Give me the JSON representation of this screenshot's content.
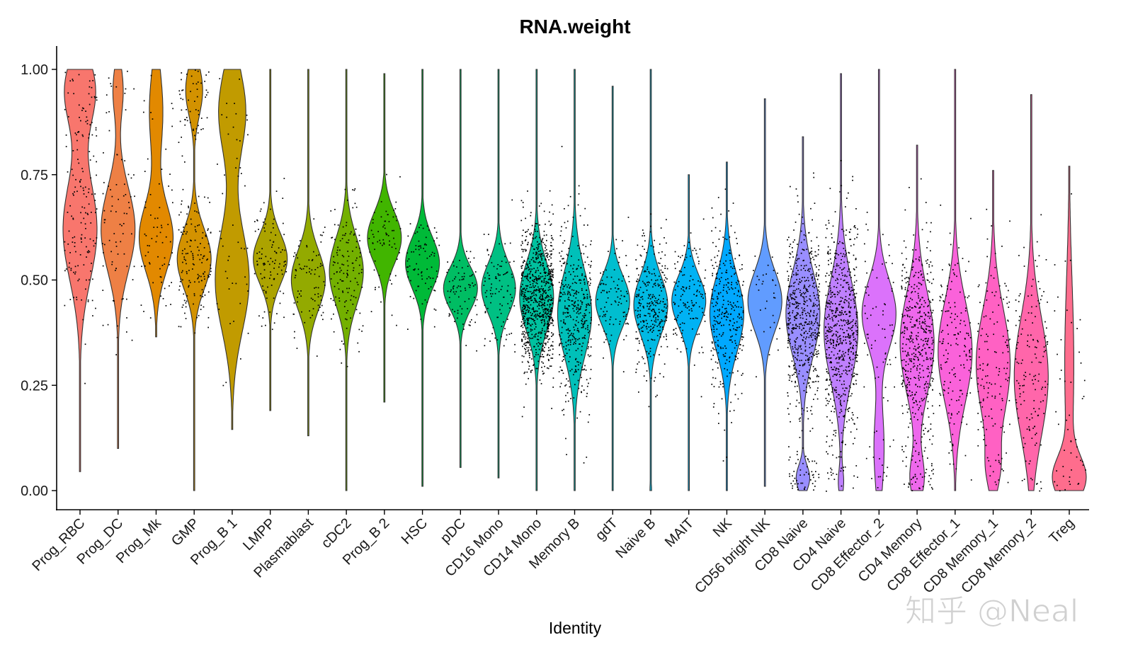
{
  "chart_data": {
    "type": "violin",
    "title": "RNA.weight",
    "xlabel": "Identity",
    "ylabel": "",
    "ylim": [
      0,
      1
    ],
    "yticks": [
      "0.00",
      "0.25",
      "0.50",
      "0.75",
      "1.00"
    ],
    "grid": false,
    "legend": "none",
    "jitter_points": true,
    "palette": "ggplot2 hue (HCL, L=65, C=100, hues 15-375)",
    "point_color": "#000000",
    "outline_color": "#333333",
    "categories": [
      "Prog_RBC",
      "Prog_DC",
      "Prog_Mk",
      "GMP",
      "Prog_B 1",
      "LMPP",
      "Plasmablast",
      "cDC2",
      "Prog_B 2",
      "HSC",
      "pDC",
      "CD16 Mono",
      "CD14 Mono",
      "Memory B",
      "gdT",
      "Naive B",
      "MAIT",
      "NK",
      "CD56 bright NK",
      "CD8 Naive",
      "CD4 Naive",
      "CD8 Effector_2",
      "CD4 Memory",
      "CD8 Effector_1",
      "CD8 Memory_1",
      "CD8 Memory_2",
      "Treg"
    ],
    "series": [
      {
        "category": "Prog_RBC",
        "min": 0.045,
        "max": 1.0,
        "peak": 0.65,
        "modes": [
          [
            0.62,
            0.12,
            1
          ],
          [
            0.95,
            0.08,
            0.9
          ]
        ],
        "relative_cells": 500
      },
      {
        "category": "Prog_DC",
        "min": 0.1,
        "max": 1.0,
        "peak": 0.63,
        "modes": [
          [
            0.62,
            0.1,
            1
          ],
          [
            0.95,
            0.06,
            0.3
          ]
        ],
        "relative_cells": 250
      },
      {
        "category": "Prog_Mk",
        "min": 0.365,
        "max": 1.0,
        "peak": 0.6,
        "modes": [
          [
            0.6,
            0.08,
            1
          ],
          [
            0.9,
            0.1,
            0.4
          ]
        ],
        "relative_cells": 200
      },
      {
        "category": "GMP",
        "min": 0.0,
        "max": 1.0,
        "peak": 0.55,
        "modes": [
          [
            0.55,
            0.07,
            1
          ],
          [
            0.95,
            0.06,
            0.5
          ]
        ],
        "relative_cells": 600
      },
      {
        "category": "Prog_B 1",
        "min": 0.145,
        "max": 1.0,
        "peak": 0.52,
        "modes": [
          [
            0.5,
            0.12,
            1
          ],
          [
            0.9,
            0.1,
            0.8
          ]
        ],
        "relative_cells": 150
      },
      {
        "category": "LMPP",
        "min": 0.19,
        "max": 1.0,
        "peak": 0.55,
        "modes": [
          [
            0.55,
            0.06,
            1
          ]
        ],
        "relative_cells": 300
      },
      {
        "category": "Plasmablast",
        "min": 0.13,
        "max": 1.0,
        "peak": 0.5,
        "modes": [
          [
            0.5,
            0.07,
            1
          ]
        ],
        "relative_cells": 250
      },
      {
        "category": "cDC2",
        "min": 0.0,
        "max": 1.0,
        "peak": 0.52,
        "modes": [
          [
            0.52,
            0.08,
            1
          ]
        ],
        "relative_cells": 400
      },
      {
        "category": "Prog_B 2",
        "min": 0.21,
        "max": 0.99,
        "peak": 0.6,
        "modes": [
          [
            0.6,
            0.06,
            1
          ]
        ],
        "relative_cells": 200
      },
      {
        "category": "HSC",
        "min": 0.01,
        "max": 1.0,
        "peak": 0.54,
        "modes": [
          [
            0.54,
            0.06,
            1
          ]
        ],
        "relative_cells": 250
      },
      {
        "category": "pDC",
        "min": 0.055,
        "max": 1.0,
        "peak": 0.48,
        "modes": [
          [
            0.48,
            0.05,
            1
          ]
        ],
        "relative_cells": 250
      },
      {
        "category": "CD16 Mono",
        "min": 0.03,
        "max": 1.0,
        "peak": 0.48,
        "modes": [
          [
            0.48,
            0.06,
            1
          ]
        ],
        "relative_cells": 300
      },
      {
        "category": "CD14 Mono",
        "min": 0.0,
        "max": 1.0,
        "peak": 0.46,
        "modes": [
          [
            0.46,
            0.08,
            1
          ]
        ],
        "relative_cells": 2500
      },
      {
        "category": "Memory B",
        "min": 0.0,
        "max": 1.0,
        "peak": 0.42,
        "modes": [
          [
            0.42,
            0.1,
            1
          ]
        ],
        "relative_cells": 1200
      },
      {
        "category": "gdT",
        "min": 0.0,
        "max": 0.96,
        "peak": 0.45,
        "modes": [
          [
            0.45,
            0.06,
            1
          ]
        ],
        "relative_cells": 300
      },
      {
        "category": "Naive B",
        "min": 0.0,
        "max": 1.0,
        "peak": 0.44,
        "modes": [
          [
            0.44,
            0.07,
            1
          ],
          [
            0.0,
            0.02,
            0.05
          ]
        ],
        "relative_cells": 900
      },
      {
        "category": "MAIT",
        "min": 0.0,
        "max": 0.75,
        "peak": 0.45,
        "modes": [
          [
            0.45,
            0.06,
            1
          ]
        ],
        "relative_cells": 400
      },
      {
        "category": "NK",
        "min": 0.0,
        "max": 0.78,
        "peak": 0.42,
        "modes": [
          [
            0.42,
            0.09,
            1
          ]
        ],
        "relative_cells": 900
      },
      {
        "category": "CD56 bright NK",
        "min": 0.01,
        "max": 0.93,
        "peak": 0.45,
        "modes": [
          [
            0.45,
            0.07,
            1
          ]
        ],
        "relative_cells": 100
      },
      {
        "category": "CD8 Naive",
        "min": 0.0,
        "max": 0.84,
        "peak": 0.42,
        "modes": [
          [
            0.42,
            0.1,
            1
          ],
          [
            0.03,
            0.03,
            0.4
          ]
        ],
        "relative_cells": 1800
      },
      {
        "category": "CD4 Naive",
        "min": 0.0,
        "max": 0.99,
        "peak": 0.38,
        "modes": [
          [
            0.38,
            0.12,
            1
          ],
          [
            0.02,
            0.03,
            0.15
          ]
        ],
        "relative_cells": 2000
      },
      {
        "category": "CD8 Effector_2",
        "min": 0.0,
        "max": 1.0,
        "peak": 0.42,
        "modes": [
          [
            0.42,
            0.08,
            1
          ],
          [
            0.1,
            0.1,
            0.3
          ]
        ],
        "relative_cells": 250
      },
      {
        "category": "CD4 Memory",
        "min": 0.0,
        "max": 0.82,
        "peak": 0.35,
        "modes": [
          [
            0.35,
            0.12,
            1
          ],
          [
            0.03,
            0.05,
            0.4
          ]
        ],
        "relative_cells": 1500
      },
      {
        "category": "CD8 Effector_1",
        "min": 0.0,
        "max": 1.0,
        "peak": 0.33,
        "modes": [
          [
            0.33,
            0.12,
            1
          ]
        ],
        "relative_cells": 500
      },
      {
        "category": "CD8 Memory_1",
        "min": 0.0,
        "max": 0.76,
        "peak": 0.3,
        "modes": [
          [
            0.3,
            0.13,
            1
          ],
          [
            0.05,
            0.05,
            0.3
          ]
        ],
        "relative_cells": 450
      },
      {
        "category": "CD8 Memory_2",
        "min": 0.0,
        "max": 0.94,
        "peak": 0.27,
        "modes": [
          [
            0.27,
            0.14,
            1
          ]
        ],
        "relative_cells": 450
      },
      {
        "category": "Treg",
        "min": 0.0,
        "max": 0.77,
        "peak": 0.03,
        "modes": [
          [
            0.03,
            0.05,
            1
          ],
          [
            0.3,
            0.2,
            0.3
          ]
        ],
        "relative_cells": 150
      }
    ]
  },
  "watermark": "知乎 @Neal"
}
